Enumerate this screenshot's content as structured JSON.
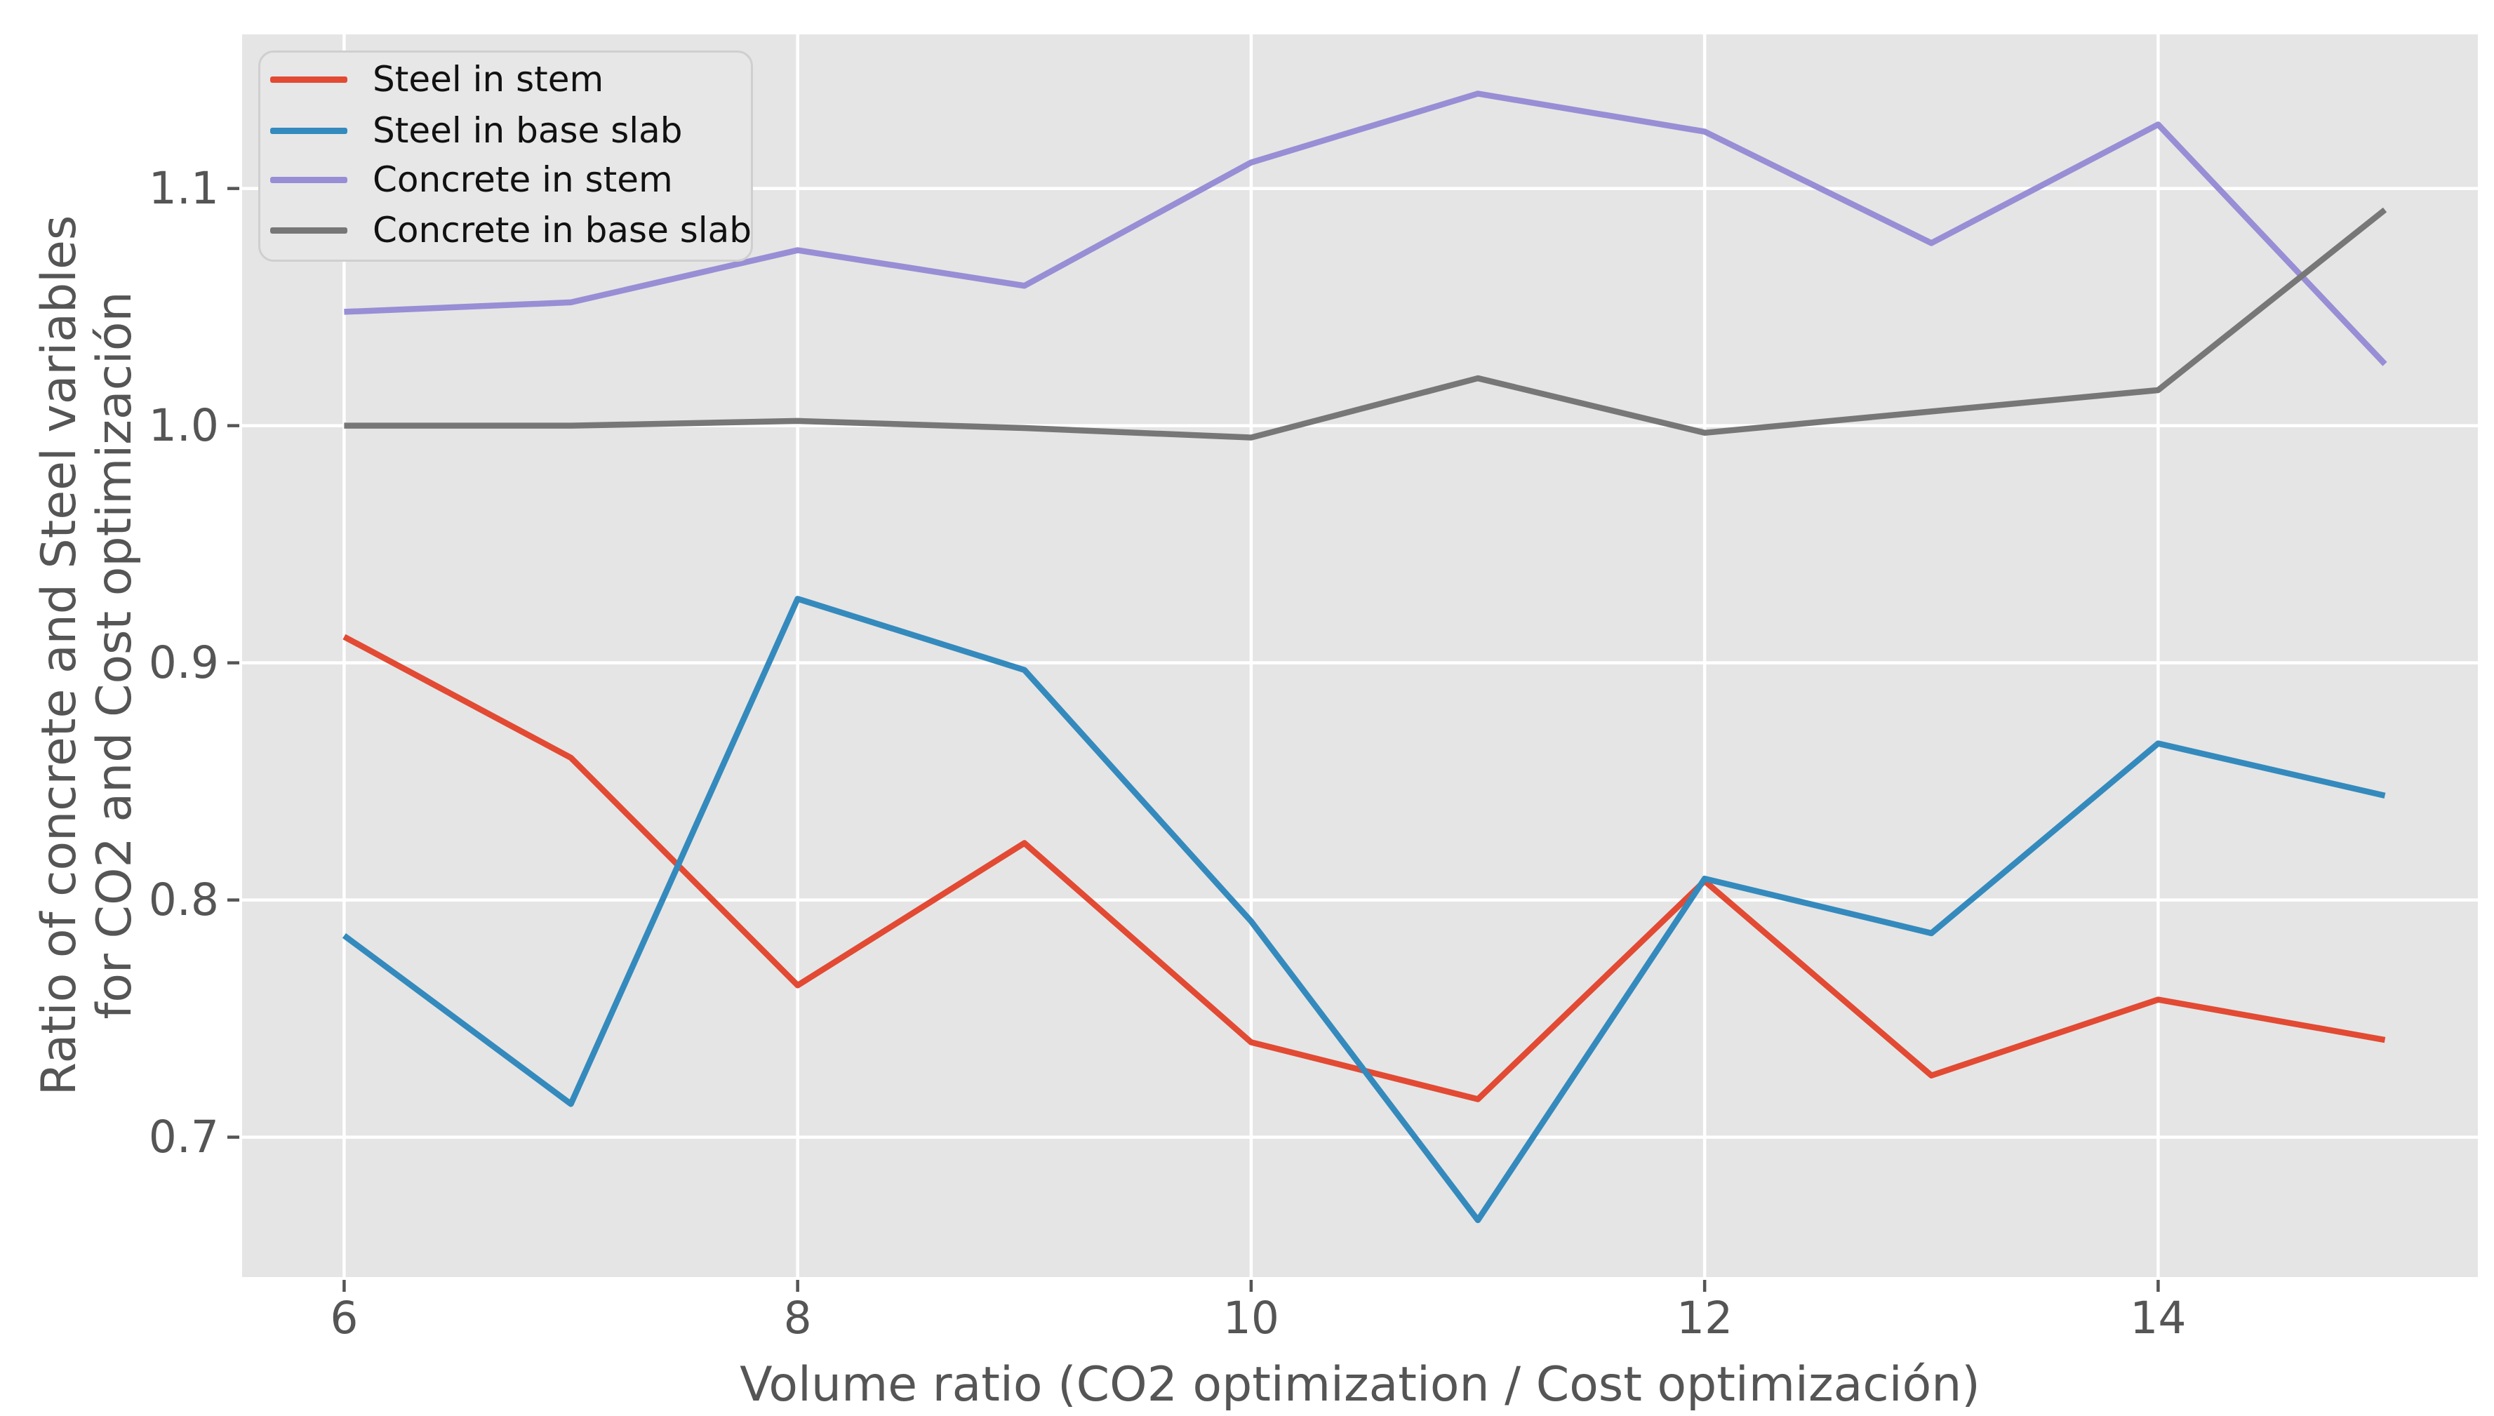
{
  "style": {
    "figure_background": "#ffffff",
    "plot_background": "#e5e5e5",
    "grid_color": "#ffffff",
    "tick_color": "#555555",
    "axis_label_color": "#555555",
    "legend_background": "#e7e7e7",
    "legend_border": "#cfcfcf",
    "legend_text_color": "#111111"
  },
  "chart_data": {
    "type": "line",
    "x": [
      6,
      7,
      8,
      9,
      10,
      11,
      12,
      13,
      14,
      15
    ],
    "series": [
      {
        "name": "Steel in stem",
        "color": "#E24A33",
        "values": [
          0.911,
          0.86,
          0.764,
          0.824,
          0.74,
          0.716,
          0.808,
          0.726,
          0.758,
          0.741
        ]
      },
      {
        "name": "Steel in base slab",
        "color": "#348ABD",
        "values": [
          0.785,
          0.714,
          0.927,
          0.897,
          0.791,
          0.665,
          0.809,
          0.786,
          0.866,
          0.844
        ]
      },
      {
        "name": "Concrete in stem",
        "color": "#988ED5",
        "values": [
          1.048,
          1.052,
          1.074,
          1.059,
          1.111,
          1.14,
          1.124,
          1.077,
          1.127,
          1.026
        ]
      },
      {
        "name": "Concrete in base slab",
        "color": "#777777",
        "values": [
          1.0,
          1.0,
          1.002,
          0.999,
          0.995,
          1.02,
          0.997,
          1.006,
          1.015,
          1.091
        ]
      }
    ],
    "xlabel": "Volume ratio (CO2 optimization / Cost optimización)",
    "ylabel_lines": [
      "Ratio of concrete and Steel variables",
      "for CO2 and Cost optimización"
    ],
    "xticks": {
      "values": [
        6,
        8,
        10,
        12,
        14
      ],
      "labels": [
        "6",
        "8",
        "10",
        "12",
        "14"
      ]
    },
    "yticks": {
      "values": [
        0.7,
        0.8,
        0.9,
        1.0,
        1.1
      ],
      "labels": [
        "0.7",
        "0.8",
        "0.9",
        "1.0",
        "1.1"
      ]
    },
    "xlim": [
      5.55,
      15.41
    ],
    "ylim": [
      0.641,
      1.165
    ],
    "grid": true,
    "legend_position": "top-left"
  }
}
